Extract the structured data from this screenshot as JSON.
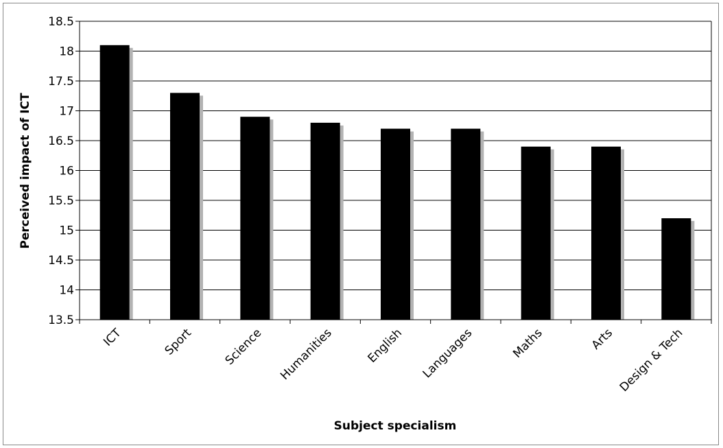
{
  "chart_data": {
    "type": "bar",
    "title": "",
    "xlabel": "Subject specialism",
    "ylabel": "Perceived impact of ICT",
    "categories": [
      "ICT",
      "Sport",
      "Science",
      "Humanities",
      "English",
      "Languages",
      "Maths",
      "Arts",
      "Design & Tech"
    ],
    "values": [
      18.1,
      17.3,
      16.9,
      16.8,
      16.7,
      16.7,
      16.4,
      16.4,
      15.2
    ],
    "ylim": [
      13.5,
      18.5
    ],
    "yticks": [
      "13.5",
      "14",
      "14.5",
      "15",
      "15.5",
      "16",
      "16.5",
      "17",
      "17.5",
      "18",
      "18.5"
    ],
    "grid": true,
    "legend": "none",
    "bar_color": "#000000",
    "shadow_color": "#b3b3b3",
    "grid_color": "#000000"
  }
}
